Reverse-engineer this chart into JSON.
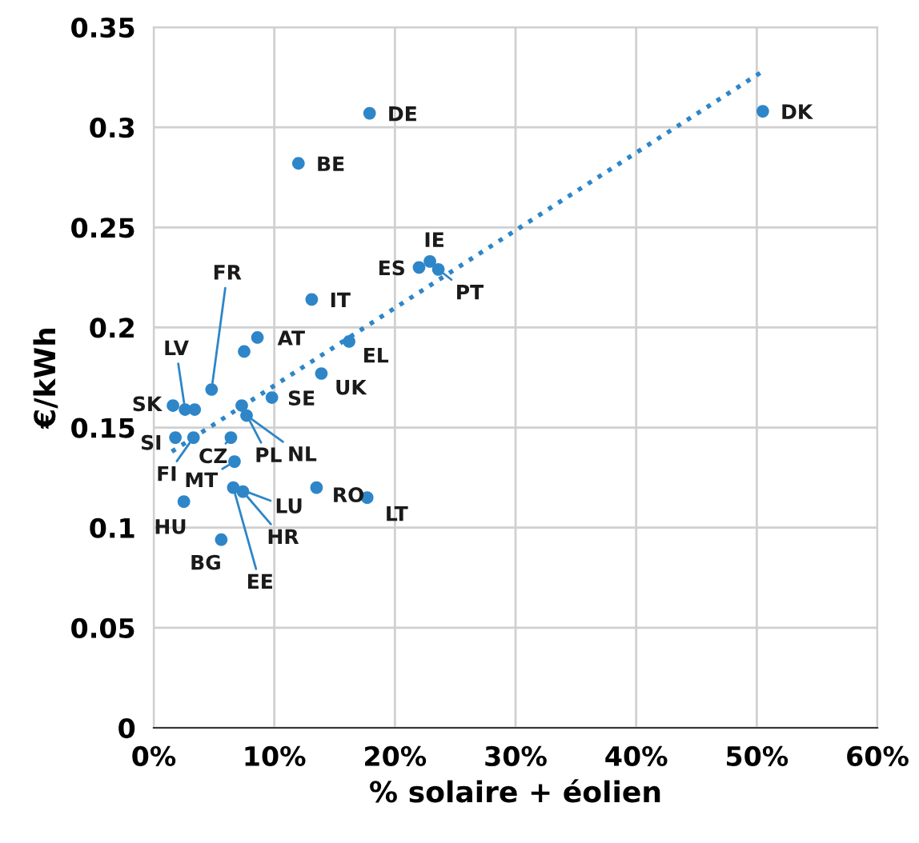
{
  "chart_data": {
    "type": "scatter",
    "xlabel": "% solaire + éolien",
    "ylabel": "€/kWh",
    "xlim": [
      0,
      60
    ],
    "ylim": [
      0,
      0.35
    ],
    "xticks": [
      {
        "value": 0,
        "label": "0%"
      },
      {
        "value": 10,
        "label": "10%"
      },
      {
        "value": 20,
        "label": "20%"
      },
      {
        "value": 30,
        "label": "30%"
      },
      {
        "value": 40,
        "label": "40%"
      },
      {
        "value": 50,
        "label": "50%"
      },
      {
        "value": 60,
        "label": "60%"
      }
    ],
    "yticks": [
      0,
      0.05,
      0.1,
      0.15,
      0.2,
      0.25,
      0.3,
      0.35
    ],
    "grid": true,
    "legend": false,
    "series": [
      {
        "type": "scatter",
        "color": "#2e86c8",
        "marker": "circle",
        "x": [
          50.5,
          17.9,
          12.0,
          22.9,
          22.0,
          23.6,
          13.1,
          8.6,
          7.5,
          16.2,
          13.9,
          9.8,
          4.8,
          1.6,
          2.6,
          3.4,
          1.8,
          3.3,
          6.4,
          7.3,
          7.7,
          6.7,
          7.4,
          2.5,
          5.6,
          6.6,
          13.5,
          17.7
        ],
        "values": [
          0.308,
          0.307,
          0.282,
          0.233,
          0.23,
          0.229,
          0.214,
          0.195,
          0.188,
          0.193,
          0.177,
          0.165,
          0.169,
          0.161,
          0.159,
          0.159,
          0.145,
          0.145,
          0.145,
          0.161,
          0.156,
          0.133,
          0.118,
          0.113,
          0.094,
          0.12,
          0.12,
          0.115
        ]
      },
      {
        "type": "line",
        "color": "#2e86c8",
        "line_style": "dotted",
        "marker": "none",
        "x": [
          1.5,
          50.5
        ],
        "values": [
          0.138,
          0.328
        ]
      }
    ],
    "annotations": [
      {
        "text": "DK",
        "x": 50.5,
        "y": 0.308
      },
      {
        "text": "DE",
        "x": 17.9,
        "y": 0.307
      },
      {
        "text": "BE",
        "x": 12.0,
        "y": 0.282
      },
      {
        "text": "IE",
        "x": 22.9,
        "y": 0.233
      },
      {
        "text": "ES",
        "x": 22.0,
        "y": 0.23
      },
      {
        "text": "PT",
        "x": 23.6,
        "y": 0.229
      },
      {
        "text": "IT",
        "x": 13.1,
        "y": 0.214
      },
      {
        "text": "AT",
        "x": 8.6,
        "y": 0.195
      },
      {
        "text": "EL",
        "x": 16.2,
        "y": 0.193
      },
      {
        "text": "UK",
        "x": 13.9,
        "y": 0.177
      },
      {
        "text": "SE",
        "x": 9.8,
        "y": 0.165
      },
      {
        "text": "FR",
        "x": 4.8,
        "y": 0.169
      },
      {
        "text": "SK",
        "x": 1.6,
        "y": 0.161
      },
      {
        "text": "LV",
        "x": 2.6,
        "y": 0.159
      },
      {
        "text": "SI",
        "x": 1.8,
        "y": 0.145
      },
      {
        "text": "FI",
        "x": 3.3,
        "y": 0.145
      },
      {
        "text": "CZ",
        "x": 6.4,
        "y": 0.145
      },
      {
        "text": "PL",
        "x": 7.3,
        "y": 0.161
      },
      {
        "text": "NL",
        "x": 7.7,
        "y": 0.156
      },
      {
        "text": "MT",
        "x": 6.7,
        "y": 0.133
      },
      {
        "text": "LU",
        "x": 6.8,
        "y": 0.12
      },
      {
        "text": "HR",
        "x": 7.4,
        "y": 0.118
      },
      {
        "text": "HU",
        "x": 2.5,
        "y": 0.113
      },
      {
        "text": "BG",
        "x": 5.6,
        "y": 0.094
      },
      {
        "text": "EE",
        "x": 6.6,
        "y": 0.12
      },
      {
        "text": "RO",
        "x": 13.5,
        "y": 0.12
      },
      {
        "text": "LT",
        "x": 17.7,
        "y": 0.115
      }
    ]
  }
}
